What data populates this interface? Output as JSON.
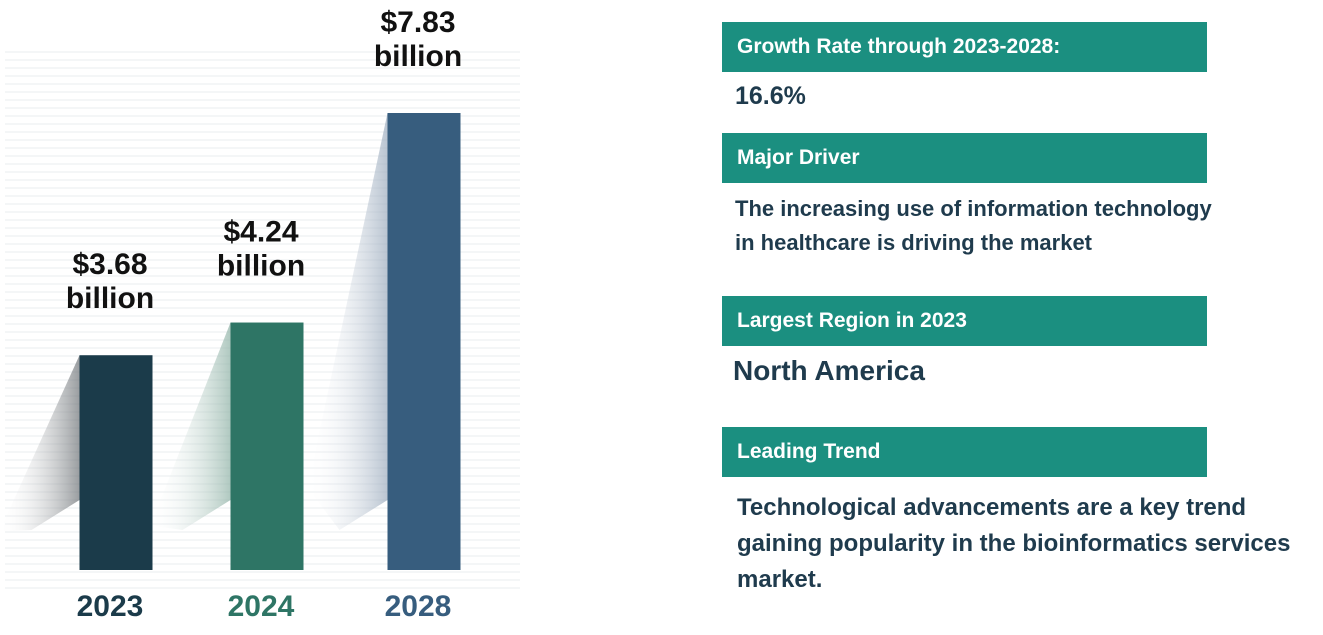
{
  "chart_data": {
    "type": "bar",
    "categories": [
      "2023",
      "2024",
      "2028"
    ],
    "values": [
      3.68,
      4.24,
      7.83
    ],
    "value_labels": [
      [
        "$3.68",
        "billion"
      ],
      [
        "$4.24",
        "billion"
      ],
      [
        "$7.83",
        "billion"
      ]
    ],
    "unit": "billion USD",
    "title": "",
    "xlabel": "",
    "ylabel": "",
    "colors": [
      "#1b3b4a",
      "#2e7565",
      "#375d7e"
    ]
  },
  "colors": {
    "accent": "#1b8f80",
    "text": "#1f3b4d",
    "year_label": [
      "#1b3b4a",
      "#2e7565",
      "#375d7e"
    ]
  },
  "panels": {
    "growth_rate": {
      "heading": "Growth Rate through 2023-2028:",
      "value": "16.6%"
    },
    "major_driver": {
      "heading": "Major Driver",
      "lines": [
        "The increasing use of information technology",
        "in healthcare is driving the market"
      ]
    },
    "largest_region": {
      "heading": "Largest Region in 2023",
      "value": "North America"
    },
    "leading_trend": {
      "heading": "Leading Trend",
      "lines": [
        "Technological advancements are a key trend",
        "gaining popularity in the bioinformatics services",
        "market."
      ]
    }
  }
}
